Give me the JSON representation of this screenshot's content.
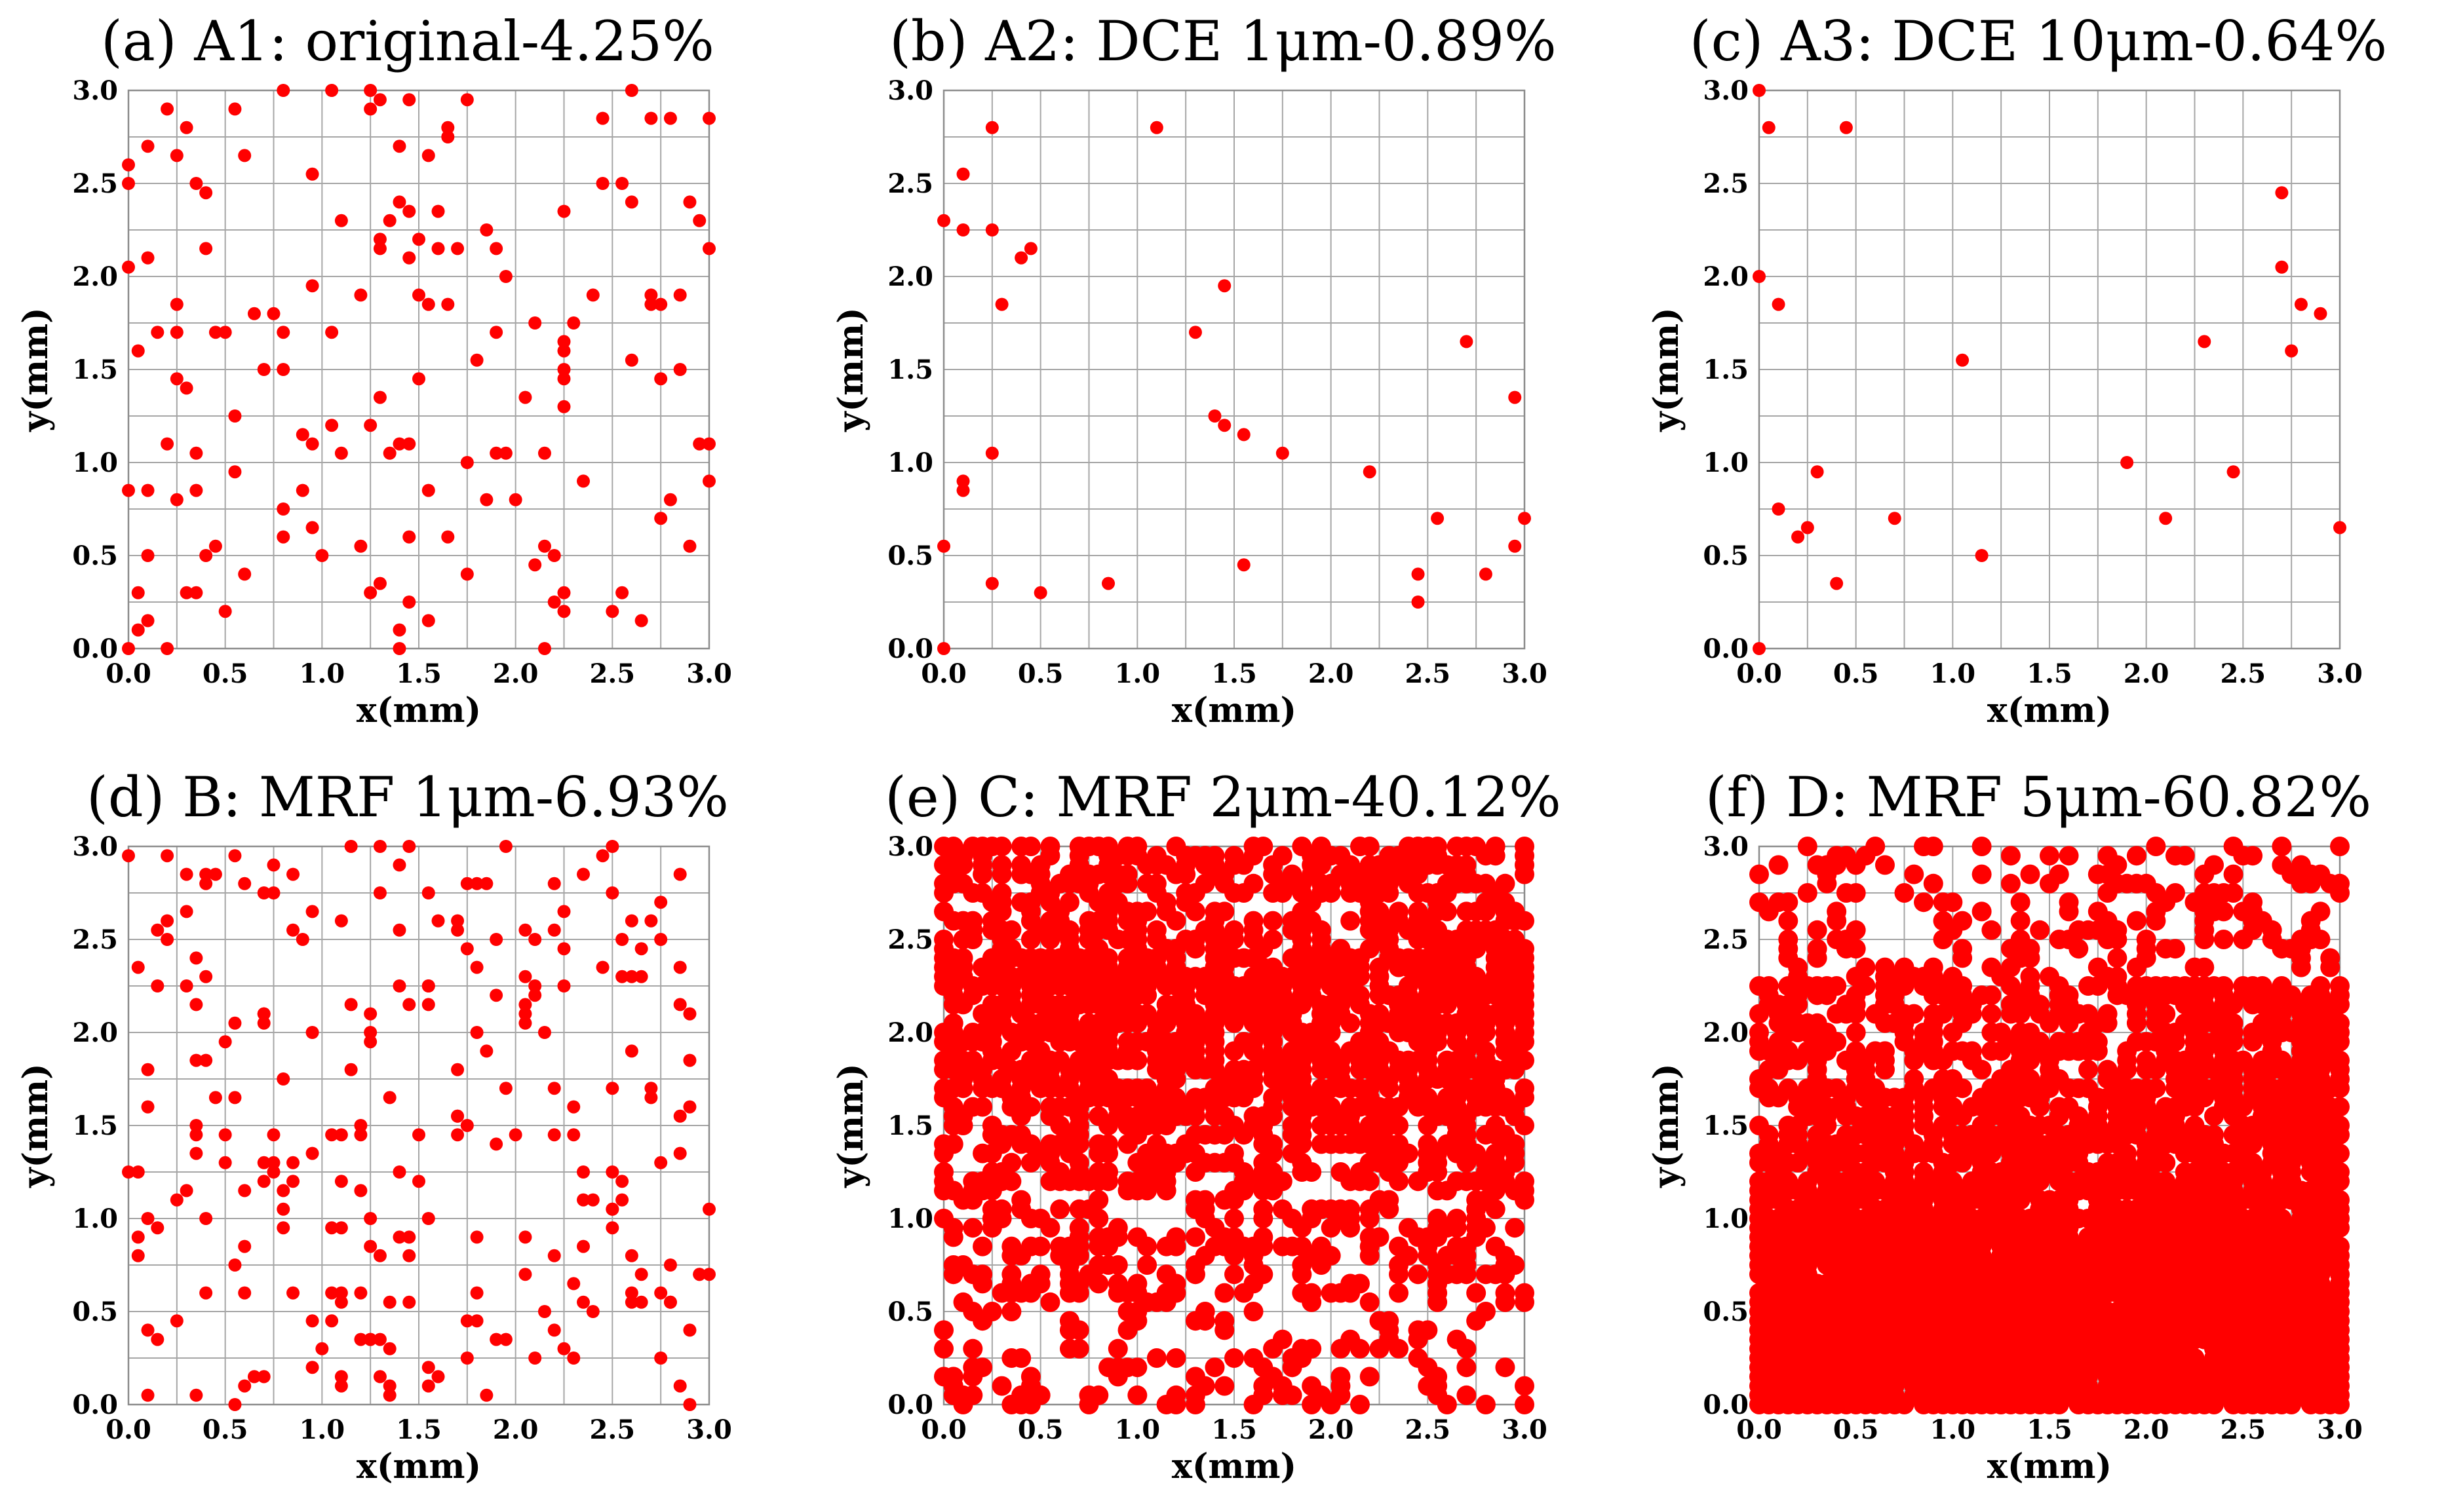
{
  "marker_color": "#ff0000",
  "chart_data": [
    {
      "panel": "a",
      "type": "scatter",
      "title": "(a) A1: original-4.25%",
      "xlabel": "x(mm)",
      "ylabel": "y(mm)",
      "xlim": [
        0,
        3
      ],
      "ylim": [
        0,
        3
      ],
      "ticks": [
        "0.0",
        "0.5",
        "1.0",
        "1.5",
        "2.0",
        "2.5",
        "3.0"
      ],
      "grid": true,
      "points": [
        [
          0,
          2.6
        ],
        [
          0,
          2.5
        ],
        [
          0,
          2.05
        ],
        [
          0,
          0.85
        ],
        [
          0,
          0
        ],
        [
          0.05,
          0.3
        ],
        [
          0.05,
          0.1
        ],
        [
          0.05,
          1.6
        ],
        [
          0.1,
          2.7
        ],
        [
          0.1,
          2.1
        ],
        [
          0.1,
          0.85
        ],
        [
          0.1,
          0.5
        ],
        [
          0.1,
          0.15
        ],
        [
          0.15,
          1.7
        ],
        [
          0.2,
          2.9
        ],
        [
          0.2,
          1.1
        ],
        [
          0.2,
          0
        ],
        [
          0.25,
          2.65
        ],
        [
          0.25,
          1.85
        ],
        [
          0.25,
          1.7
        ],
        [
          0.25,
          1.45
        ],
        [
          0.25,
          0.8
        ],
        [
          0.3,
          2.8
        ],
        [
          0.3,
          1.4
        ],
        [
          0.3,
          0.3
        ],
        [
          0.35,
          2.5
        ],
        [
          0.35,
          1.05
        ],
        [
          0.35,
          0.85
        ],
        [
          0.35,
          0.3
        ],
        [
          0.4,
          2.45
        ],
        [
          0.4,
          2.15
        ],
        [
          0.4,
          0.5
        ],
        [
          0.45,
          1.7
        ],
        [
          0.45,
          0.55
        ],
        [
          0.5,
          1.7
        ],
        [
          0.5,
          0.2
        ],
        [
          0.55,
          2.9
        ],
        [
          0.55,
          1.25
        ],
        [
          0.55,
          0.95
        ],
        [
          0.6,
          2.65
        ],
        [
          0.6,
          0.4
        ],
        [
          0.65,
          1.8
        ],
        [
          0.7,
          1.5
        ],
        [
          0.75,
          1.8
        ],
        [
          0.8,
          3
        ],
        [
          0.8,
          1.7
        ],
        [
          0.8,
          1.5
        ],
        [
          0.8,
          0.75
        ],
        [
          0.8,
          0.6
        ],
        [
          0.9,
          1.15
        ],
        [
          0.9,
          0.85
        ],
        [
          0.95,
          2.55
        ],
        [
          0.95,
          1.95
        ],
        [
          0.95,
          1.1
        ],
        [
          0.95,
          0.65
        ],
        [
          1,
          0.5
        ],
        [
          1.05,
          3
        ],
        [
          1.05,
          1.7
        ],
        [
          1.05,
          1.2
        ],
        [
          1.1,
          2.3
        ],
        [
          1.1,
          1.05
        ],
        [
          1.2,
          1.9
        ],
        [
          1.2,
          0.55
        ],
        [
          1.25,
          3
        ],
        [
          1.25,
          2.9
        ],
        [
          1.25,
          1.2
        ],
        [
          1.25,
          0.3
        ],
        [
          1.3,
          2.95
        ],
        [
          1.3,
          2.2
        ],
        [
          1.3,
          2.15
        ],
        [
          1.3,
          1.35
        ],
        [
          1.3,
          0.35
        ],
        [
          1.35,
          2.3
        ],
        [
          1.35,
          1.05
        ],
        [
          1.4,
          2.7
        ],
        [
          1.4,
          2.4
        ],
        [
          1.4,
          1.1
        ],
        [
          1.4,
          0.1
        ],
        [
          1.4,
          0
        ],
        [
          1.45,
          2.95
        ],
        [
          1.45,
          2.35
        ],
        [
          1.45,
          2.1
        ],
        [
          1.45,
          1.1
        ],
        [
          1.45,
          0.6
        ],
        [
          1.45,
          0.25
        ],
        [
          1.5,
          2.2
        ],
        [
          1.5,
          1.9
        ],
        [
          1.5,
          1.45
        ],
        [
          1.55,
          2.65
        ],
        [
          1.55,
          1.85
        ],
        [
          1.55,
          0.85
        ],
        [
          1.55,
          0.15
        ],
        [
          1.6,
          2.35
        ],
        [
          1.6,
          2.15
        ],
        [
          1.65,
          2.8
        ],
        [
          1.65,
          2.75
        ],
        [
          1.65,
          1.85
        ],
        [
          1.65,
          0.6
        ],
        [
          1.7,
          2.15
        ],
        [
          1.75,
          2.95
        ],
        [
          1.75,
          1
        ],
        [
          1.75,
          0.4
        ],
        [
          1.8,
          1.55
        ],
        [
          1.85,
          2.25
        ],
        [
          1.85,
          0.8
        ],
        [
          1.9,
          2.15
        ],
        [
          1.9,
          1.7
        ],
        [
          1.9,
          1.05
        ],
        [
          1.95,
          2
        ],
        [
          1.95,
          1.05
        ],
        [
          2,
          0.8
        ],
        [
          2.05,
          1.35
        ],
        [
          2.1,
          1.75
        ],
        [
          2.1,
          0.45
        ],
        [
          2.15,
          1.05
        ],
        [
          2.15,
          0.55
        ],
        [
          2.15,
          0
        ],
        [
          2.2,
          0.5
        ],
        [
          2.2,
          0.25
        ],
        [
          2.25,
          2.35
        ],
        [
          2.25,
          1.65
        ],
        [
          2.25,
          1.6
        ],
        [
          2.25,
          1.5
        ],
        [
          2.25,
          1.45
        ],
        [
          2.25,
          1.3
        ],
        [
          2.25,
          0.3
        ],
        [
          2.25,
          0.2
        ],
        [
          2.3,
          1.75
        ],
        [
          2.35,
          0.9
        ],
        [
          2.4,
          1.9
        ],
        [
          2.45,
          2.85
        ],
        [
          2.45,
          2.5
        ],
        [
          2.5,
          0.2
        ],
        [
          2.55,
          2.5
        ],
        [
          2.55,
          0.3
        ],
        [
          2.6,
          3
        ],
        [
          2.6,
          2.4
        ],
        [
          2.6,
          1.55
        ],
        [
          2.65,
          0.15
        ],
        [
          2.7,
          2.85
        ],
        [
          2.7,
          1.9
        ],
        [
          2.7,
          1.85
        ],
        [
          2.75,
          1.85
        ],
        [
          2.75,
          1.45
        ],
        [
          2.75,
          0.7
        ],
        [
          2.8,
          2.85
        ],
        [
          2.8,
          0.8
        ],
        [
          2.85,
          1.9
        ],
        [
          2.85,
          1.5
        ],
        [
          2.9,
          2.4
        ],
        [
          2.9,
          0.55
        ],
        [
          2.95,
          2.3
        ],
        [
          2.95,
          1.1
        ],
        [
          3,
          2.85
        ],
        [
          3,
          2.15
        ],
        [
          3,
          1.1
        ],
        [
          3,
          0.9
        ]
      ]
    },
    {
      "panel": "b",
      "type": "scatter",
      "title": "(b) A2: DCE 1μm-0.89%",
      "xlabel": "x(mm)",
      "ylabel": "y(mm)",
      "xlim": [
        0,
        3
      ],
      "ylim": [
        0,
        3
      ],
      "ticks": [
        "0.0",
        "0.5",
        "1.0",
        "1.5",
        "2.0",
        "2.5",
        "3.0"
      ],
      "grid": true,
      "points": [
        [
          0,
          2.3
        ],
        [
          0,
          0.55
        ],
        [
          0,
          0
        ],
        [
          0.1,
          2.55
        ],
        [
          0.1,
          2.25
        ],
        [
          0.1,
          0.9
        ],
        [
          0.1,
          0.85
        ],
        [
          0.25,
          2.8
        ],
        [
          0.25,
          2.25
        ],
        [
          0.25,
          1.05
        ],
        [
          0.25,
          0.35
        ],
        [
          0.3,
          1.85
        ],
        [
          0.4,
          2.1
        ],
        [
          0.45,
          2.15
        ],
        [
          0.5,
          0.3
        ],
        [
          0.85,
          0.35
        ],
        [
          1.1,
          2.8
        ],
        [
          1.3,
          1.7
        ],
        [
          1.4,
          1.25
        ],
        [
          1.45,
          1.95
        ],
        [
          1.45,
          1.2
        ],
        [
          1.55,
          1.15
        ],
        [
          1.55,
          0.45
        ],
        [
          1.75,
          1.05
        ],
        [
          2.2,
          0.95
        ],
        [
          2.45,
          0.4
        ],
        [
          2.45,
          0.25
        ],
        [
          2.55,
          0.7
        ],
        [
          2.7,
          1.65
        ],
        [
          2.8,
          0.4
        ],
        [
          2.95,
          1.35
        ],
        [
          2.95,
          0.55
        ],
        [
          3,
          0.7
        ]
      ]
    },
    {
      "panel": "c",
      "type": "scatter",
      "title": "(c) A3: DCE 10μm-0.64%",
      "xlabel": "x(mm)",
      "ylabel": "y(mm)",
      "xlim": [
        0,
        3
      ],
      "ylim": [
        0,
        3
      ],
      "ticks": [
        "0.0",
        "0.5",
        "1.0",
        "1.5",
        "2.0",
        "2.5",
        "3.0"
      ],
      "grid": true,
      "points": [
        [
          0,
          3
        ],
        [
          0.05,
          2.8
        ],
        [
          0,
          2
        ],
        [
          0.1,
          1.85
        ],
        [
          0.1,
          0.75
        ],
        [
          0,
          0
        ],
        [
          0.2,
          0.6
        ],
        [
          0.25,
          0.65
        ],
        [
          0.3,
          0.95
        ],
        [
          0.4,
          0.35
        ],
        [
          0.45,
          2.8
        ],
        [
          0.7,
          0.7
        ],
        [
          1.05,
          1.55
        ],
        [
          1.15,
          0.5
        ],
        [
          1.9,
          1
        ],
        [
          2.1,
          0.7
        ],
        [
          2.3,
          1.65
        ],
        [
          2.45,
          0.95
        ],
        [
          2.7,
          2.45
        ],
        [
          2.7,
          2.05
        ],
        [
          2.75,
          1.6
        ],
        [
          2.8,
          1.85
        ],
        [
          2.9,
          1.8
        ],
        [
          3,
          0.65
        ]
      ]
    },
    {
      "panel": "d",
      "type": "scatter",
      "title": "(d) B: MRF 1μm-6.93%",
      "xlabel": "x(mm)",
      "ylabel": "y(mm)",
      "xlim": [
        0,
        3
      ],
      "ylim": [
        0,
        3
      ],
      "ticks": [
        "0.0",
        "0.5",
        "1.0",
        "1.5",
        "2.0",
        "2.5",
        "3.0"
      ],
      "grid": true,
      "note": "~250 scattered points; density approximately uniform over [0,3]x[0,3]"
    },
    {
      "panel": "e",
      "type": "scatter",
      "title": "(e) C: MRF 2μm-40.12%",
      "xlabel": "x(mm)",
      "ylabel": "y(mm)",
      "xlim": [
        0,
        3
      ],
      "ylim": [
        0,
        3
      ],
      "ticks": [
        "0.0",
        "0.5",
        "1.0",
        "1.5",
        "2.0",
        "2.5",
        "3.0"
      ],
      "grid": true,
      "note": "dense points on a 0.05 mm lattice, densest for y between 1.6 and 2.4, sparse near y < 0.6"
    },
    {
      "panel": "f",
      "type": "scatter",
      "title": "(f) D: MRF 5μm-60.82%",
      "xlabel": "x(mm)",
      "ylabel": "y(mm)",
      "xlim": [
        0,
        3
      ],
      "ylim": [
        0,
        3
      ],
      "ticks": [
        "0.0",
        "0.5",
        "1.0",
        "1.5",
        "2.0",
        "2.5",
        "3.0"
      ],
      "grid": true,
      "note": "nearly continuous coverage for y below 1.0, decreasing density toward y = 3.0"
    }
  ]
}
